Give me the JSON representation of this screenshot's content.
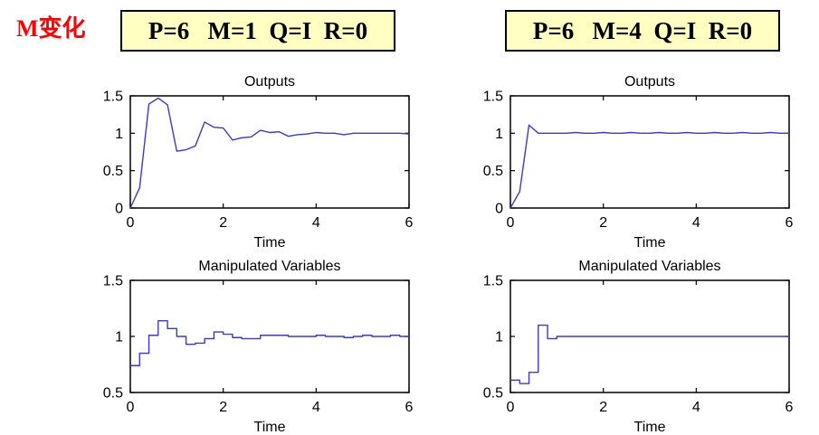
{
  "header": {
    "annotation": "M变化",
    "annotation_color": "#ff0000",
    "param_boxes": [
      {
        "label": "P=6   M=1  Q=I  R=0",
        "bg_color": "#ffffc2",
        "border_color": "#000000"
      },
      {
        "label": "P=6   M=4  Q=I  R=0",
        "bg_color": "#ffffc2",
        "border_color": "#000000"
      }
    ]
  },
  "chart_data": [
    {
      "id": "outputs-left",
      "type": "line",
      "step": false,
      "title": "Outputs",
      "xlabel": "Time",
      "xlim": [
        0,
        6
      ],
      "ylim": [
        0,
        1.5
      ],
      "xticks": [
        0,
        2,
        4,
        6
      ],
      "yticks": [
        0,
        0.5,
        1,
        1.5
      ],
      "line_color": "#3b3bc8",
      "x": [
        0,
        0.2,
        0.4,
        0.6,
        0.8,
        1.0,
        1.2,
        1.4,
        1.6,
        1.8,
        2.0,
        2.2,
        2.4,
        2.6,
        2.8,
        3.0,
        3.2,
        3.4,
        3.6,
        3.8,
        4.0,
        4.2,
        4.4,
        4.6,
        4.8,
        5.0,
        5.2,
        5.4,
        5.6,
        5.8,
        6.0
      ],
      "y": [
        0,
        0.27,
        1.39,
        1.47,
        1.38,
        0.76,
        0.78,
        0.83,
        1.15,
        1.08,
        1.07,
        0.91,
        0.94,
        0.95,
        1.04,
        1.01,
        1.02,
        0.96,
        0.98,
        0.99,
        1.01,
        1.0,
        1.0,
        0.98,
        1.0,
        1.0,
        1.0,
        1.0,
        1.0,
        1.0,
        0.99
      ]
    },
    {
      "id": "outputs-right",
      "type": "line",
      "step": false,
      "title": "Outputs",
      "xlabel": "Time",
      "xlim": [
        0,
        6
      ],
      "ylim": [
        0,
        1.5
      ],
      "xticks": [
        0,
        2,
        4,
        6
      ],
      "yticks": [
        0,
        0.5,
        1,
        1.5
      ],
      "line_color": "#3b3bc8",
      "x": [
        0,
        0.2,
        0.4,
        0.6,
        0.8,
        1.0,
        1.2,
        1.4,
        1.6,
        1.8,
        2.0,
        2.2,
        2.4,
        2.6,
        2.8,
        3.0,
        3.2,
        3.4,
        3.6,
        3.8,
        4.0,
        4.2,
        4.4,
        4.6,
        4.8,
        5.0,
        5.2,
        5.4,
        5.6,
        5.8,
        6.0
      ],
      "y": [
        0,
        0.22,
        1.11,
        1.0,
        1.0,
        1.0,
        1.0,
        1.01,
        1.0,
        1.0,
        1.01,
        1.0,
        1.0,
        1.01,
        1.0,
        1.0,
        1.01,
        1.0,
        1.0,
        1.01,
        1.0,
        1.0,
        1.01,
        1.0,
        1.0,
        1.01,
        1.0,
        1.0,
        1.01,
        1.0,
        1.0
      ]
    },
    {
      "id": "manipulated-left",
      "type": "line",
      "step": true,
      "title": "Manipulated Variables",
      "xlabel": "Time",
      "xlim": [
        0,
        6
      ],
      "ylim": [
        0.5,
        1.5
      ],
      "xticks": [
        0,
        2,
        4,
        6
      ],
      "yticks": [
        0.5,
        1,
        1.5
      ],
      "line_color": "#3b3bc8",
      "x": [
        0,
        0.2,
        0.4,
        0.6,
        0.8,
        1.0,
        1.2,
        1.4,
        1.6,
        1.8,
        2.0,
        2.2,
        2.4,
        2.6,
        2.8,
        3.0,
        3.2,
        3.4,
        3.6,
        3.8,
        4.0,
        4.2,
        4.4,
        4.6,
        4.8,
        5.0,
        5.2,
        5.4,
        5.6,
        5.8
      ],
      "y": [
        0.74,
        0.85,
        1.01,
        1.14,
        1.07,
        1.0,
        0.93,
        0.94,
        0.98,
        1.04,
        1.02,
        0.99,
        0.98,
        0.98,
        1.01,
        1.01,
        1.01,
        1.0,
        1.0,
        1.0,
        1.01,
        1.0,
        1.0,
        0.99,
        1.0,
        1.01,
        1.0,
        1.0,
        1.01,
        1.0
      ]
    },
    {
      "id": "manipulated-right",
      "type": "line",
      "step": true,
      "title": "Manipulated Variables",
      "xlabel": "Time",
      "xlim": [
        0,
        6
      ],
      "ylim": [
        0.5,
        1.5
      ],
      "xticks": [
        0,
        2,
        4,
        6
      ],
      "yticks": [
        0.5,
        1,
        1.5
      ],
      "line_color": "#3b3bc8",
      "x": [
        0,
        0.2,
        0.4,
        0.6,
        0.8,
        1.0,
        1.2,
        1.4,
        1.6,
        1.8,
        2.0,
        2.2,
        2.4,
        2.6,
        2.8,
        3.0,
        3.2,
        3.4,
        3.6,
        3.8,
        4.0,
        4.2,
        4.4,
        4.6,
        4.8,
        5.0,
        5.2,
        5.4,
        5.6,
        5.8
      ],
      "y": [
        0.61,
        0.58,
        0.68,
        1.1,
        0.98,
        1.0,
        1.0,
        1.0,
        1.0,
        1.0,
        1.0,
        1.0,
        1.0,
        1.0,
        1.0,
        1.0,
        1.0,
        1.0,
        1.0,
        1.0,
        1.0,
        1.0,
        1.0,
        1.0,
        1.0,
        1.0,
        1.0,
        1.0,
        1.0,
        1.0
      ]
    }
  ]
}
